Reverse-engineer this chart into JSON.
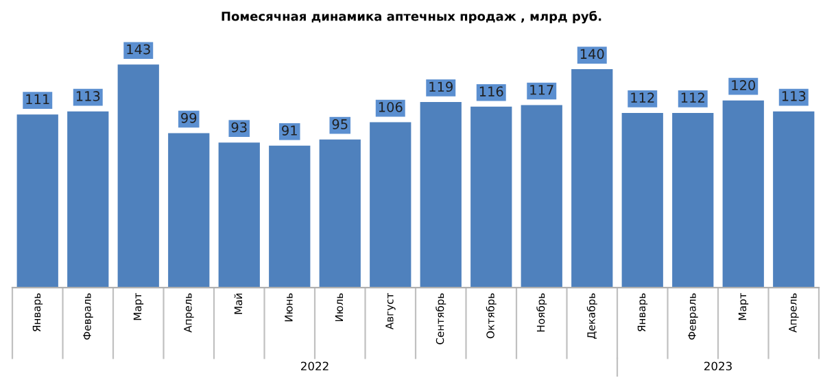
{
  "chart_data": {
    "type": "bar",
    "title": "Помесячная динамика аптечных продаж , млрд руб.",
    "categories": [
      "Январь",
      "Февраль",
      "Март",
      "Апрель",
      "Май",
      "Июнь",
      "Июль",
      "Август",
      "Сентябрь",
      "Октябрь",
      "Ноябрь",
      "Декабрь",
      "Январь",
      "Февраль",
      "Март",
      "Апрель"
    ],
    "values": [
      111,
      113,
      143,
      99,
      93,
      91,
      95,
      106,
      119,
      116,
      117,
      140,
      112,
      112,
      120,
      113
    ],
    "color": "#4f81bd",
    "data_labels": true,
    "annotations": [
      "2022",
      "2023"
    ]
  }
}
